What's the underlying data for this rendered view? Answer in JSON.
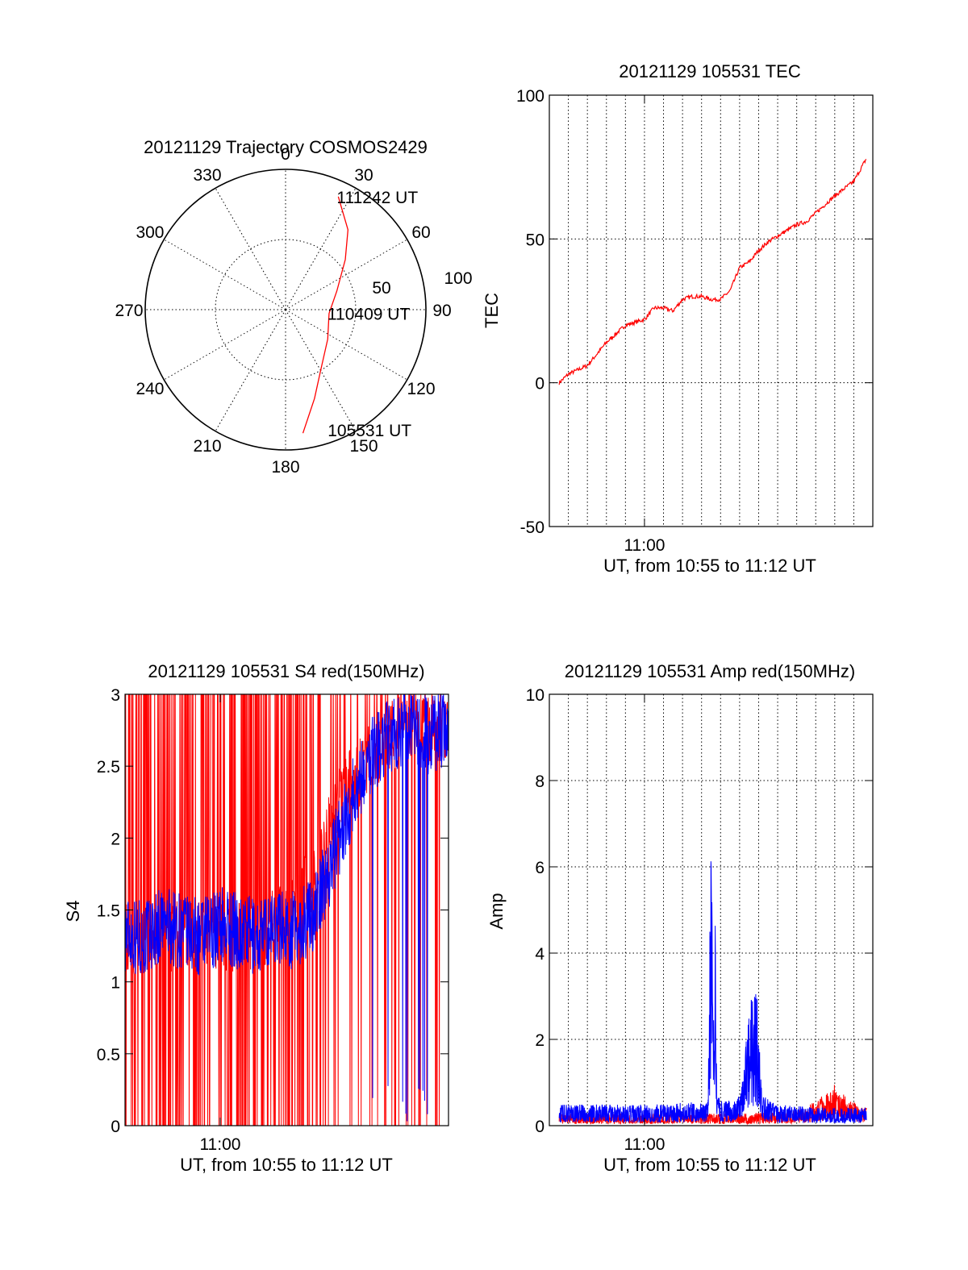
{
  "chart_data": [
    {
      "type": "polar",
      "title": "20121129 Trajectory COSMOS2429",
      "angle_labels": [
        "0",
        "30",
        "60",
        "90",
        "120",
        "150",
        "180",
        "210",
        "240",
        "270",
        "300",
        "330"
      ],
      "radius_labels": [
        "50",
        "100"
      ],
      "series": [
        {
          "color": "#ff0000",
          "points": [
            {
              "az": 172,
              "el": 10
            },
            {
              "az": 162,
              "el": 30
            },
            {
              "az": 150,
              "el": 45
            },
            {
              "az": 125,
              "el": 57
            },
            {
              "az": 95,
              "el": 62
            },
            {
              "az": 70,
              "el": 55
            },
            {
              "az": 50,
              "el": 40
            },
            {
              "az": 38,
              "el": 25
            },
            {
              "az": 25,
              "el": 10
            }
          ]
        }
      ],
      "annotations": [
        {
          "text": "111242 UT",
          "az": 25,
          "el": 10
        },
        {
          "text": "110409 UT",
          "az": 95,
          "el": 62
        },
        {
          "text": "105531 UT",
          "az": 160,
          "el": 8
        }
      ]
    },
    {
      "type": "line",
      "title": "20121129 105531 TEC",
      "xlabel": "UT, from 10:55 to 11:12 UT",
      "ylabel": "TEC",
      "xlim": [
        "10:55:00",
        "11:12:00"
      ],
      "ylim": [
        -50,
        100
      ],
      "xticks": [
        {
          "t": "11:00:00",
          "label": "11:00"
        }
      ],
      "yticks": [
        "-50",
        "0",
        "50",
        "100"
      ],
      "grid": true,
      "series": [
        {
          "color": "#ff0000",
          "x": [
            "10:55:31",
            "10:56:00",
            "10:57:00",
            "10:58:00",
            "10:59:00",
            "11:00:00",
            "11:00:30",
            "11:01:00",
            "11:01:30",
            "11:02:00",
            "11:02:30",
            "11:03:00",
            "11:03:30",
            "11:04:00",
            "11:04:30",
            "11:05:00",
            "11:05:30",
            "11:06:00",
            "11:06:30",
            "11:07:00",
            "11:07:30",
            "11:08:00",
            "11:08:30",
            "11:09:00",
            "11:09:30",
            "11:10:00",
            "11:11:00",
            "11:11:40"
          ],
          "y": [
            0,
            3,
            6,
            14,
            20,
            22,
            26,
            26,
            25,
            29,
            30,
            30,
            29,
            29,
            32,
            40,
            42,
            46,
            49,
            51,
            53,
            55,
            56,
            59,
            62,
            65,
            70,
            78
          ]
        }
      ]
    },
    {
      "type": "line",
      "title": "20121129 105531 S4 red(150MHz)",
      "xlabel": "UT, from 10:55 to 11:12 UT",
      "ylabel": "S4",
      "xlim": [
        "10:55:00",
        "11:12:00"
      ],
      "ylim": [
        0,
        3
      ],
      "xticks": [
        {
          "t": "11:00:00",
          "label": "11:00"
        }
      ],
      "yticks": [
        "0",
        "0.5",
        "1",
        "1.5",
        "2",
        "2.5",
        "3"
      ],
      "grid": false,
      "series": [
        {
          "color": "#ff0000",
          "note_style": "dense vertical spikes 0–3 until ~11:05, sparser afterwards",
          "x": [
            "10:55:00",
            "10:57:00",
            "10:59:00",
            "11:01:00",
            "11:03:00",
            "11:05:00",
            "11:06:00",
            "11:08:00",
            "11:10:00",
            "11:12:00"
          ],
          "y": [
            1.3,
            1.3,
            1.35,
            1.3,
            1.4,
            1.7,
            2.2,
            2.6,
            2.8,
            2.7
          ]
        },
        {
          "color": "#0000ff",
          "x": [
            "10:55:00",
            "10:56:00",
            "10:57:00",
            "10:58:00",
            "10:59:00",
            "11:00:00",
            "11:01:00",
            "11:02:00",
            "11:03:00",
            "11:04:00",
            "11:05:00",
            "11:06:00",
            "11:07:00",
            "11:08:00",
            "11:09:00",
            "11:10:00",
            "11:11:00",
            "11:12:00"
          ],
          "y": [
            1.35,
            1.3,
            1.4,
            1.35,
            1.3,
            1.4,
            1.35,
            1.3,
            1.4,
            1.35,
            1.5,
            1.9,
            2.3,
            2.6,
            2.7,
            2.8,
            2.7,
            2.8
          ]
        }
      ]
    },
    {
      "type": "line",
      "title": "20121129 105531 Amp red(150MHz)",
      "xlabel": "UT, from 10:55 to 11:12 UT",
      "ylabel": "Amp",
      "xlim": [
        "10:55:00",
        "11:12:00"
      ],
      "ylim": [
        0,
        10
      ],
      "xticks": [
        {
          "t": "11:00:00",
          "label": "11:00"
        }
      ],
      "yticks": [
        "0",
        "2",
        "4",
        "6",
        "8",
        "10"
      ],
      "grid": true,
      "series": [
        {
          "color": "#ff0000",
          "x": [
            "10:55:31",
            "11:00:00",
            "11:05:00",
            "11:08:00",
            "11:09:00",
            "11:10:00",
            "11:10:30",
            "11:11:00",
            "11:11:40"
          ],
          "y": [
            0.2,
            0.2,
            0.2,
            0.25,
            0.4,
            0.7,
            0.5,
            0.4,
            0.3
          ]
        },
        {
          "color": "#0000ff",
          "x": [
            "10:55:31",
            "11:00:00",
            "11:03:20",
            "11:03:30",
            "11:03:40",
            "11:03:50",
            "11:04:10",
            "11:05:00",
            "11:05:20",
            "11:05:40",
            "11:06:00",
            "11:06:10",
            "11:07:00",
            "11:09:00",
            "11:11:40"
          ],
          "y": [
            0.35,
            0.35,
            0.4,
            5.3,
            4.6,
            0.5,
            0.4,
            0.5,
            1.5,
            2.3,
            2.1,
            0.5,
            0.35,
            0.3,
            0.3
          ]
        }
      ]
    }
  ]
}
